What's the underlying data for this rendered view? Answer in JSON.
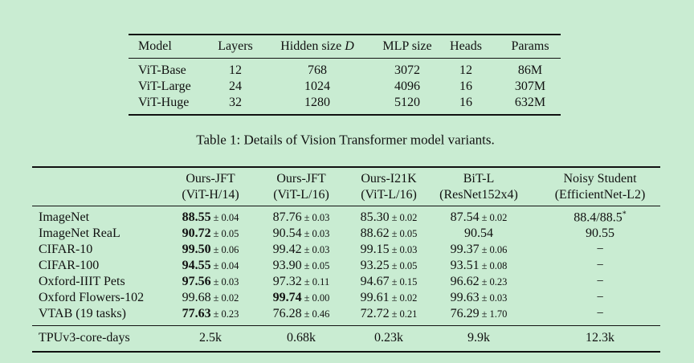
{
  "table1": {
    "header": [
      "Model",
      "Layers",
      {
        "text": "Hidden size",
        "math": "D"
      },
      "MLP size",
      "Heads",
      "Params"
    ],
    "rows": [
      [
        "ViT-Base",
        "12",
        "768",
        "3072",
        "12",
        "86M"
      ],
      [
        "ViT-Large",
        "24",
        "1024",
        "4096",
        "16",
        "307M"
      ],
      [
        "ViT-Huge",
        "32",
        "1280",
        "5120",
        "16",
        "632M"
      ]
    ],
    "caption": "Table 1: Details of Vision Transformer model variants."
  },
  "table2": {
    "header": [
      [
        "Ours-JFT",
        "(ViT-H/14)"
      ],
      [
        "Ours-JFT",
        "(ViT-L/16)"
      ],
      [
        "Ours-I21K",
        "(ViT-L/16)"
      ],
      [
        "BiT-L",
        "(ResNet152x4)"
      ],
      [
        "Noisy Student",
        "(EfficientNet-L2)"
      ]
    ],
    "rows": [
      {
        "label": "ImageNet",
        "cells": [
          {
            "main": "88.55",
            "pm": "± 0.04",
            "bold": true
          },
          {
            "main": "87.76",
            "pm": "± 0.03"
          },
          {
            "main": "85.30",
            "pm": "± 0.02"
          },
          {
            "main": "87.54",
            "pm": "± 0.02"
          },
          {
            "main": "88.4/88.5",
            "sup": "*"
          }
        ]
      },
      {
        "label": "ImageNet ReaL",
        "cells": [
          {
            "main": "90.72",
            "pm": "± 0.05",
            "bold": true
          },
          {
            "main": "90.54",
            "pm": "± 0.03"
          },
          {
            "main": "88.62",
            "pm": "± 0.05"
          },
          {
            "main": "90.54"
          },
          {
            "main": "90.55"
          }
        ]
      },
      {
        "label": "CIFAR-10",
        "cells": [
          {
            "main": "99.50",
            "pm": "± 0.06",
            "bold": true
          },
          {
            "main": "99.42",
            "pm": "± 0.03"
          },
          {
            "main": "99.15",
            "pm": "± 0.03"
          },
          {
            "main": "99.37",
            "pm": "± 0.06"
          },
          {
            "main": "−"
          }
        ]
      },
      {
        "label": "CIFAR-100",
        "cells": [
          {
            "main": "94.55",
            "pm": "± 0.04",
            "bold": true
          },
          {
            "main": "93.90",
            "pm": "± 0.05"
          },
          {
            "main": "93.25",
            "pm": "± 0.05"
          },
          {
            "main": "93.51",
            "pm": "± 0.08"
          },
          {
            "main": "−"
          }
        ]
      },
      {
        "label": "Oxford-IIIT Pets",
        "cells": [
          {
            "main": "97.56",
            "pm": "± 0.03",
            "bold": true
          },
          {
            "main": "97.32",
            "pm": "± 0.11"
          },
          {
            "main": "94.67",
            "pm": "± 0.15"
          },
          {
            "main": "96.62",
            "pm": "± 0.23"
          },
          {
            "main": "−"
          }
        ]
      },
      {
        "label": "Oxford Flowers-102",
        "cells": [
          {
            "main": "99.68",
            "pm": "± 0.02"
          },
          {
            "main": "99.74",
            "pm": "± 0.00",
            "bold": true
          },
          {
            "main": "99.61",
            "pm": "± 0.02"
          },
          {
            "main": "99.63",
            "pm": "± 0.03"
          },
          {
            "main": "−"
          }
        ]
      },
      {
        "label": "VTAB (19 tasks)",
        "cells": [
          {
            "main": "77.63",
            "pm": "± 0.23",
            "bold": true
          },
          {
            "main": "76.28",
            "pm": "± 0.46"
          },
          {
            "main": "72.72",
            "pm": "± 0.21"
          },
          {
            "main": "76.29",
            "pm": "± 1.70"
          },
          {
            "main": "−"
          }
        ]
      }
    ],
    "footer": {
      "label": "TPUv3-core-days",
      "cells": [
        "2.5k",
        "0.68k",
        "0.23k",
        "9.9k",
        "12.3k"
      ]
    }
  }
}
